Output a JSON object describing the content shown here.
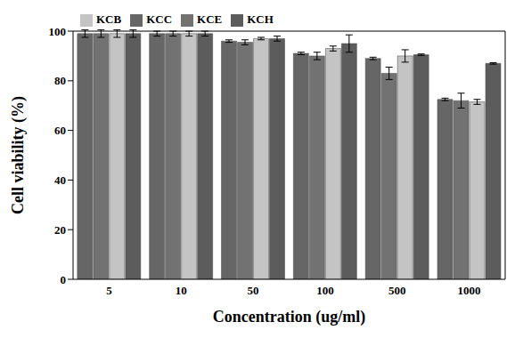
{
  "chart_data": {
    "type": "bar",
    "x_label": "Concentration (ug/ml)",
    "y_label": "Cell viability (%)",
    "categories": [
      "5",
      "10",
      "50",
      "100",
      "500",
      "1000"
    ],
    "series": [
      {
        "name": "KCC",
        "color": "#666666",
        "values": [
          99,
          99,
          96,
          91,
          89,
          72.5
        ],
        "errors": [
          1.5,
          1,
          0.5,
          0.5,
          0.5,
          0.5
        ]
      },
      {
        "name": "KCE",
        "color": "#727272",
        "values": [
          99,
          99,
          95.5,
          90,
          83,
          72
        ],
        "errors": [
          1.5,
          1,
          1,
          1.5,
          2.5,
          3
        ]
      },
      {
        "name": "KCB",
        "color": "#c4c4c4",
        "values": [
          99,
          99,
          97,
          93,
          90,
          71.5
        ],
        "errors": [
          1.5,
          1,
          0.5,
          1,
          2.5,
          1
        ]
      },
      {
        "name": "KCH",
        "color": "#5c5c5c",
        "values": [
          99,
          99,
          97,
          95,
          90.5,
          87
        ],
        "errors": [
          1.5,
          1,
          1,
          3.5,
          0.3,
          0.3
        ]
      }
    ],
    "ylim": [
      0,
      100
    ],
    "yticks": [
      0,
      20,
      40,
      60,
      80,
      100
    ],
    "grid": false,
    "legend": "upper left"
  }
}
